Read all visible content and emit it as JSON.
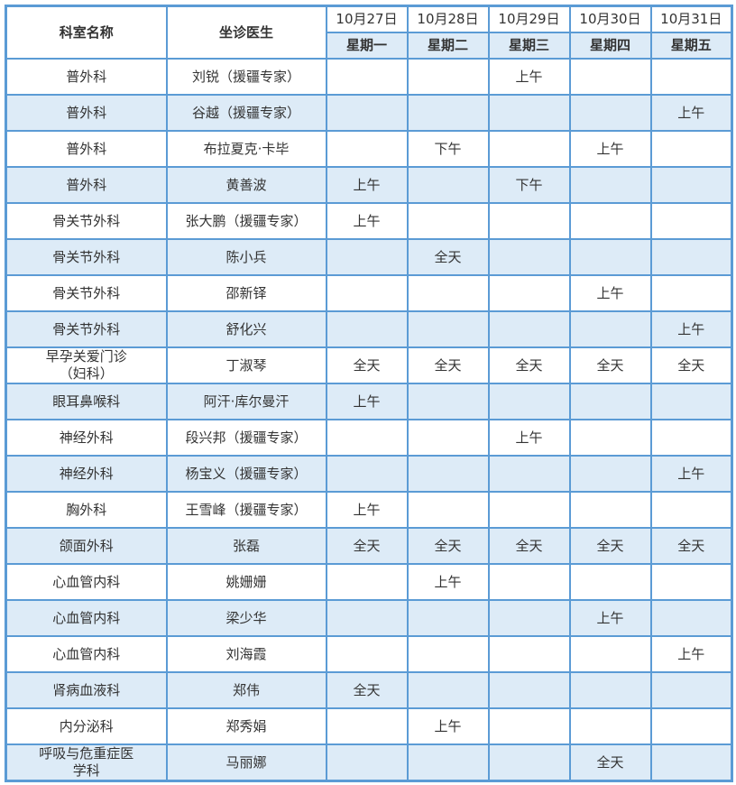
{
  "header": {
    "dept": "科室名称",
    "doctor": "坐诊医生",
    "dates": [
      "10月27日",
      "10月28日",
      "10月29日",
      "10月30日",
      "10月31日"
    ],
    "weekdays": [
      "星期一",
      "星期二",
      "星期三",
      "星期四",
      "星期五"
    ]
  },
  "rows": [
    {
      "dept": "普外科",
      "doctor": "刘锐（援疆专家）",
      "days": [
        "",
        "",
        "上午",
        "",
        ""
      ]
    },
    {
      "dept": "普外科",
      "doctor": "谷越（援疆专家）",
      "days": [
        "",
        "",
        "",
        "",
        "上午"
      ]
    },
    {
      "dept": "普外科",
      "doctor": "布拉夏克·卡毕",
      "days": [
        "",
        "下午",
        "",
        "上午",
        ""
      ]
    },
    {
      "dept": "普外科",
      "doctor": "黄善波",
      "days": [
        "上午",
        "",
        "下午",
        "",
        ""
      ]
    },
    {
      "dept": "骨关节外科",
      "doctor": "张大鹏（援疆专家）",
      "days": [
        "上午",
        "",
        "",
        "",
        ""
      ]
    },
    {
      "dept": "骨关节外科",
      "doctor": "陈小兵",
      "days": [
        "",
        "全天",
        "",
        "",
        ""
      ]
    },
    {
      "dept": "骨关节外科",
      "doctor": "邵新铎",
      "days": [
        "",
        "",
        "",
        "上午",
        ""
      ]
    },
    {
      "dept": "骨关节外科",
      "doctor": "舒化兴",
      "days": [
        "",
        "",
        "",
        "",
        "上午"
      ]
    },
    {
      "dept": "早孕关爱门诊（妇科）",
      "doctor": "丁淑琴",
      "days": [
        "全天",
        "全天",
        "全天",
        "全天",
        "全天"
      ]
    },
    {
      "dept": "眼耳鼻喉科",
      "doctor": "阿汗·库尔曼汗",
      "days": [
        "上午",
        "",
        "",
        "",
        ""
      ]
    },
    {
      "dept": "神经外科",
      "doctor": "段兴邦（援疆专家）",
      "days": [
        "",
        "",
        "上午",
        "",
        ""
      ]
    },
    {
      "dept": "神经外科",
      "doctor": "杨宝义（援疆专家）",
      "days": [
        "",
        "",
        "",
        "",
        "上午"
      ]
    },
    {
      "dept": "胸外科",
      "doctor": "王雪峰（援疆专家）",
      "days": [
        "上午",
        "",
        "",
        "",
        ""
      ]
    },
    {
      "dept": "颌面外科",
      "doctor": "张磊",
      "days": [
        "全天",
        "全天",
        "全天",
        "全天",
        "全天"
      ]
    },
    {
      "dept": "心血管内科",
      "doctor": "姚姗姗",
      "days": [
        "",
        "上午",
        "",
        "",
        ""
      ]
    },
    {
      "dept": "心血管内科",
      "doctor": "梁少华",
      "days": [
        "",
        "",
        "",
        "上午",
        ""
      ]
    },
    {
      "dept": "心血管内科",
      "doctor": "刘海霞",
      "days": [
        "",
        "",
        "",
        "",
        "上午"
      ]
    },
    {
      "dept": "肾病血液科",
      "doctor": "郑伟",
      "days": [
        "全天",
        "",
        "",
        "",
        ""
      ]
    },
    {
      "dept": "内分泌科",
      "doctor": "郑秀娟",
      "days": [
        "",
        "上午",
        "",
        "",
        ""
      ]
    },
    {
      "dept": "呼吸与危重症医学科",
      "doctor": "马丽娜",
      "days": [
        "",
        "",
        "",
        "全天",
        ""
      ]
    }
  ]
}
